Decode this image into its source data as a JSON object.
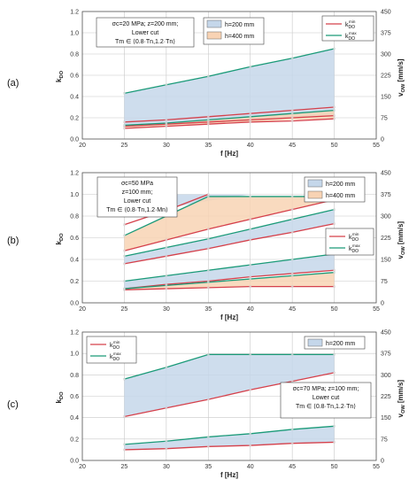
{
  "figure": {
    "colors": {
      "band_h200": "#c5d7ea",
      "band_h400": "#f8d3b4",
      "kmin": "#d5404b",
      "kmax": "#1a9a78",
      "grid": "#c8c8c8",
      "frame": "#555555"
    }
  },
  "chart_data": [
    {
      "type": "line",
      "panel_label": "(a)",
      "x": [
        25,
        30,
        35,
        40,
        45,
        50
      ],
      "xlim": [
        20,
        55
      ],
      "xticks": [
        "20",
        "25",
        "30",
        "35",
        "40",
        "45",
        "50",
        "55"
      ],
      "xlabel": "f [Hz]",
      "ylim": [
        0,
        1.2
      ],
      "yticks": [
        "0.0",
        "0.2",
        "0.4",
        "0.6",
        "0.8",
        "1.0",
        "1.2"
      ],
      "ylabel": "kDO",
      "y2lim": [
        0,
        450
      ],
      "y2ticks": [
        "0",
        "75",
        "150",
        "225",
        "300",
        "375",
        "450"
      ],
      "y2label": "vOW [mm/s]",
      "annotation": [
        "σc=20 MPa; z=200 mm;",
        "Lower cut",
        "Tm ∈ ⟨0.8·Tn,1.2·Tn⟩"
      ],
      "legend_bands": [
        "h=200 mm",
        "h=400 mm"
      ],
      "legend_lines": [
        "kDO min",
        "kDO max"
      ],
      "series": [
        {
          "name": "h=200 mm",
          "band": true,
          "lower": [
            0.12,
            0.14,
            0.16,
            0.18,
            0.2,
            0.22
          ],
          "upper": [
            0.43,
            0.51,
            0.59,
            0.68,
            0.76,
            0.85
          ]
        },
        {
          "name": "h=400 mm",
          "band": true,
          "lower": [
            0.1,
            0.12,
            0.14,
            0.16,
            0.18,
            0.19
          ],
          "upper": [
            0.13,
            0.15,
            0.18,
            0.21,
            0.24,
            0.27
          ]
        },
        {
          "name": "kDO min",
          "values": [
            0.16,
            0.18,
            0.21,
            0.24,
            0.27,
            0.3
          ]
        },
        {
          "name": "kDO min",
          "values": [
            0.12,
            0.14,
            0.16,
            0.18,
            0.2,
            0.22
          ]
        },
        {
          "name": "kDO min",
          "values": [
            0.1,
            0.12,
            0.14,
            0.16,
            0.17,
            0.19
          ]
        },
        {
          "name": "kDO max",
          "values": [
            0.43,
            0.51,
            0.59,
            0.68,
            0.76,
            0.85
          ]
        },
        {
          "name": "kDO max",
          "values": [
            0.13,
            0.15,
            0.18,
            0.21,
            0.24,
            0.27
          ]
        }
      ]
    },
    {
      "type": "line",
      "panel_label": "(b)",
      "x": [
        25,
        30,
        35,
        40,
        45,
        50
      ],
      "xlim": [
        20,
        55
      ],
      "xticks": [
        "20",
        "25",
        "30",
        "35",
        "40",
        "45",
        "50",
        "55"
      ],
      "xlabel": "f [Hz]",
      "ylim": [
        0,
        1.2
      ],
      "yticks": [
        "0.0",
        "0.2",
        "0.4",
        "0.6",
        "0.8",
        "1.0",
        "1.2"
      ],
      "ylabel": "kDO",
      "y2lim": [
        0,
        450
      ],
      "y2ticks": [
        "0",
        "75",
        "150",
        "225",
        "300",
        "375",
        "450"
      ],
      "y2label": "vOW [mm/s]",
      "annotation": [
        "σc=50 MPa",
        "z=100 mm;",
        "Lower cut",
        "Tm ∈ ⟨0.8·Tn,1.2·Mn⟩"
      ],
      "legend_bands": [
        "h=200 mm",
        "h=400 mm"
      ],
      "legend_lines": [
        "kDO min",
        "kDO max"
      ],
      "series": [
        {
          "name": "h=200 mm",
          "band": true,
          "lower": [
            0.8,
            0.87,
            0.94,
            1.0,
            1.0,
            1.0
          ],
          "upper": [
            1.0,
            1.0,
            1.0,
            1.0,
            1.0,
            1.0
          ]
        },
        {
          "name": "h=200 mm",
          "band": true,
          "lower": [
            0.36,
            0.43,
            0.5,
            0.58,
            0.65,
            0.73
          ],
          "upper": [
            0.43,
            0.51,
            0.59,
            0.68,
            0.77,
            0.86
          ]
        },
        {
          "name": "h=400 mm",
          "band": true,
          "lower": [
            0.48,
            0.58,
            0.68,
            0.77,
            0.86,
            0.95
          ],
          "upper": [
            0.62,
            0.8,
            0.98,
            0.98,
            0.98,
            0.98
          ]
        },
        {
          "name": "h=200 mm",
          "band": true,
          "lower": [
            0.13,
            0.17,
            0.2,
            0.24,
            0.27,
            0.3
          ],
          "upper": [
            0.2,
            0.25,
            0.3,
            0.35,
            0.4,
            0.45
          ]
        },
        {
          "name": "h=400 mm",
          "band": true,
          "lower": [
            0.12,
            0.13,
            0.14,
            0.15,
            0.15,
            0.15
          ],
          "upper": [
            0.13,
            0.16,
            0.19,
            0.22,
            0.25,
            0.28
          ]
        },
        {
          "name": "kDO min",
          "values": [
            0.72,
            0.85,
            1.0,
            null,
            null,
            null
          ]
        },
        {
          "name": "kDO min",
          "values": [
            0.48,
            0.58,
            0.68,
            0.77,
            0.86,
            0.95
          ]
        },
        {
          "name": "kDO min",
          "values": [
            0.36,
            0.43,
            0.5,
            0.58,
            0.65,
            0.73
          ]
        },
        {
          "name": "kDO min",
          "values": [
            0.13,
            0.17,
            0.2,
            0.24,
            0.27,
            0.3
          ]
        },
        {
          "name": "kDO min",
          "values": [
            0.12,
            0.13,
            0.14,
            0.15,
            0.15,
            0.15
          ]
        },
        {
          "name": "kDO max",
          "values": [
            0.8,
            0.99,
            null,
            null,
            null,
            null
          ]
        },
        {
          "name": "kDO max",
          "values": [
            0.62,
            0.8,
            0.98,
            0.98,
            0.98,
            0.98
          ]
        },
        {
          "name": "kDO max",
          "values": [
            0.43,
            0.51,
            0.59,
            0.68,
            0.77,
            0.86
          ]
        },
        {
          "name": "kDO max",
          "values": [
            0.2,
            0.25,
            0.3,
            0.35,
            0.4,
            0.45
          ]
        },
        {
          "name": "kDO max",
          "values": [
            0.13,
            0.16,
            0.19,
            0.22,
            0.25,
            0.28
          ]
        }
      ]
    },
    {
      "type": "line",
      "panel_label": "(c)",
      "x": [
        25,
        30,
        35,
        40,
        45,
        50
      ],
      "xlim": [
        20,
        55
      ],
      "xticks": [
        "20",
        "25",
        "30",
        "35",
        "40",
        "45",
        "50",
        "55"
      ],
      "xlabel": "f [Hz]",
      "ylim": [
        0,
        1.2
      ],
      "yticks": [
        "0.0",
        "0.2",
        "0.4",
        "0.6",
        "0.8",
        "1.0",
        "1.2"
      ],
      "ylabel": "kDO",
      "y2lim": [
        0,
        450
      ],
      "y2ticks": [
        "0",
        "75",
        "150",
        "225",
        "300",
        "375",
        "450"
      ],
      "y2label": "vOW [mm/s]",
      "annotation": [
        "σc=70 MPa; z=100 mm;",
        "Lower cut",
        "Tm ∈ ⟨0.8·Tn,1.2·Tn⟩"
      ],
      "legend_bands": [
        "h=200 mm"
      ],
      "legend_lines": [
        "kDO min",
        "kDO max"
      ],
      "series": [
        {
          "name": "h=200 mm",
          "band": true,
          "lower": [
            0.41,
            0.49,
            0.57,
            0.66,
            0.74,
            0.82
          ],
          "upper": [
            0.76,
            0.87,
            0.99,
            0.99,
            0.99,
            0.99
          ]
        },
        {
          "name": "h=200 mm",
          "band": true,
          "lower": [
            0.1,
            0.11,
            0.13,
            0.14,
            0.16,
            0.17
          ],
          "upper": [
            0.15,
            0.18,
            0.22,
            0.25,
            0.29,
            0.32
          ]
        },
        {
          "name": "kDO min",
          "values": [
            0.41,
            0.49,
            0.57,
            0.66,
            0.74,
            0.82
          ]
        },
        {
          "name": "kDO min",
          "values": [
            0.1,
            0.11,
            0.13,
            0.14,
            0.16,
            0.17
          ]
        },
        {
          "name": "kDO max",
          "values": [
            0.76,
            0.87,
            0.99,
            0.99,
            0.99,
            0.99
          ]
        },
        {
          "name": "kDO max",
          "values": [
            0.15,
            0.18,
            0.22,
            0.25,
            0.29,
            0.32
          ]
        }
      ]
    }
  ]
}
